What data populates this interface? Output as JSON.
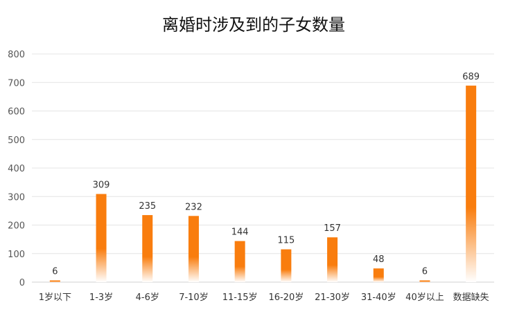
{
  "chart_data": {
    "type": "bar",
    "title": "离婚时涉及到的子女数量",
    "categories": [
      "1岁以下",
      "1-3岁",
      "4-6岁",
      "7-10岁",
      "11-15岁",
      "16-20岁",
      "21-30岁",
      "31-40岁",
      "40岁以上",
      "数据缺失"
    ],
    "values": [
      6,
      309,
      235,
      232,
      144,
      115,
      157,
      48,
      6,
      689
    ],
    "ylim": [
      0,
      800
    ],
    "yticks": [
      0,
      100,
      200,
      300,
      400,
      500,
      600,
      700,
      800
    ],
    "grid": true,
    "legend": "none",
    "bar_color": "#f97d0e",
    "bar_fade_color": "#ffffff",
    "data_labels": true
  }
}
